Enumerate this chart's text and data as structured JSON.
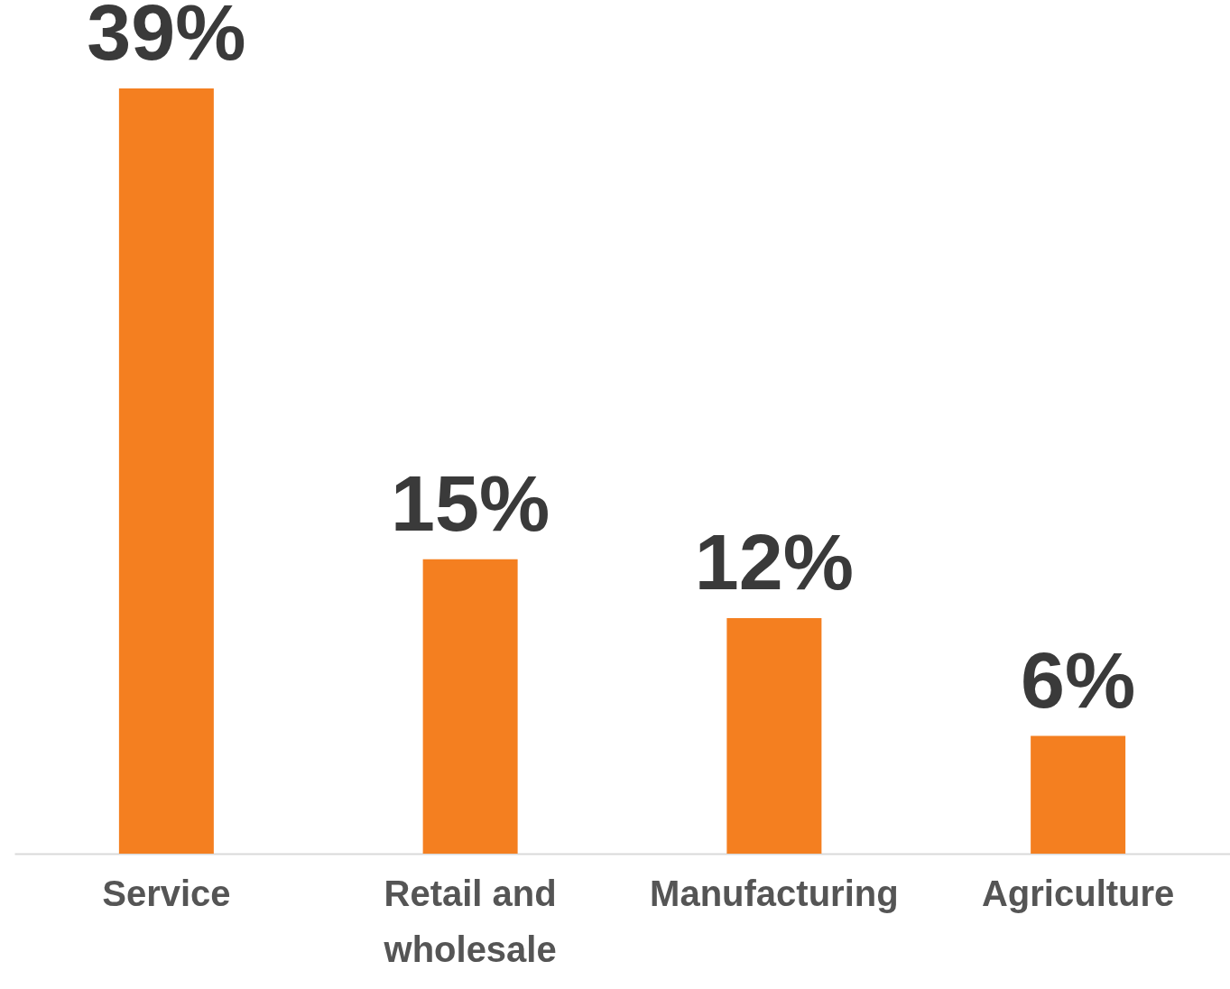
{
  "chart_data": {
    "type": "bar",
    "categories": [
      "Service",
      "Retail and wholesale",
      "Manufacturing",
      "Agriculture"
    ],
    "values": [
      39,
      15,
      12,
      6
    ],
    "value_labels": [
      "39%",
      "15%",
      "12%",
      "6%"
    ],
    "color": "#f47f20"
  }
}
